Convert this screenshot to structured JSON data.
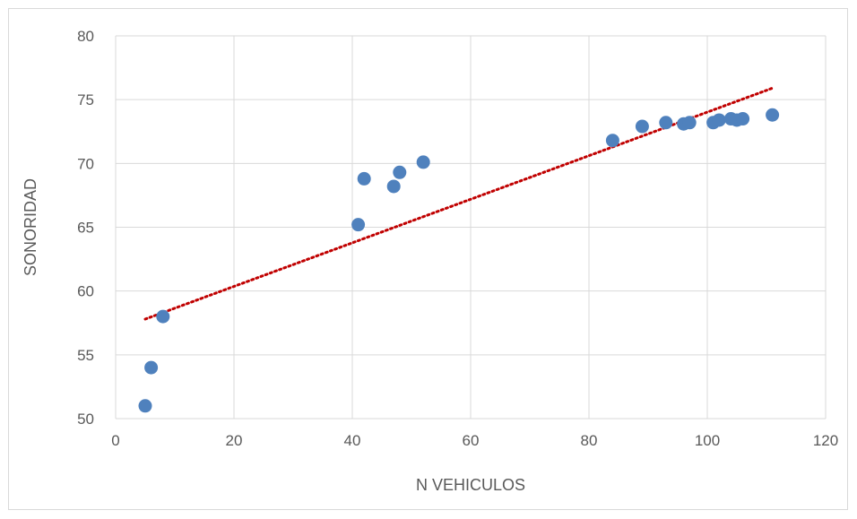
{
  "chart_data": {
    "type": "scatter",
    "xlabel": "N VEHICULOS",
    "ylabel": "SONORIDAD",
    "xlim": [
      0,
      120
    ],
    "ylim": [
      50,
      80
    ],
    "x_ticks": [
      "0",
      "20",
      "40",
      "60",
      "80",
      "100",
      "120"
    ],
    "y_ticks": [
      "50",
      "55",
      "60",
      "65",
      "70",
      "75",
      "80"
    ],
    "grid": true,
    "legend": "none",
    "point_color": "#4f81bd",
    "trendline_color": "#c00000",
    "series": [
      {
        "points": [
          {
            "x": 5,
            "y": 51.0
          },
          {
            "x": 6,
            "y": 54.0
          },
          {
            "x": 8,
            "y": 58.0
          },
          {
            "x": 41,
            "y": 65.2
          },
          {
            "x": 42,
            "y": 68.8
          },
          {
            "x": 47,
            "y": 68.2
          },
          {
            "x": 48,
            "y": 69.3
          },
          {
            "x": 52,
            "y": 70.1
          },
          {
            "x": 84,
            "y": 71.8
          },
          {
            "x": 89,
            "y": 72.9
          },
          {
            "x": 93,
            "y": 73.2
          },
          {
            "x": 96,
            "y": 73.1
          },
          {
            "x": 97,
            "y": 73.2
          },
          {
            "x": 101,
            "y": 73.2
          },
          {
            "x": 102,
            "y": 73.4
          },
          {
            "x": 104,
            "y": 73.5
          },
          {
            "x": 105,
            "y": 73.4
          },
          {
            "x": 106,
            "y": 73.5
          },
          {
            "x": 111,
            "y": 73.8
          }
        ]
      }
    ],
    "trendline": {
      "type": "linear",
      "x": [
        5,
        111
      ],
      "y": [
        57.8,
        75.9
      ]
    }
  }
}
